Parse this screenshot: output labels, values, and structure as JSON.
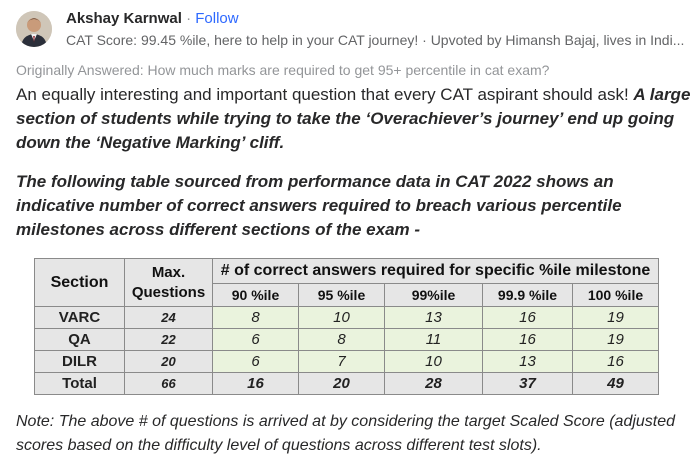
{
  "author": {
    "name": "Akshay Karnwal",
    "separator": "·",
    "follow_label": "Follow",
    "credential": "CAT Score: 99.45 %ile, here to help in your CAT journey! · Upvoted by Himansh Bajaj, lives in Indi..."
  },
  "originally_answered": "Originally Answered: How much marks are required to get 95+ percentile in cat exam?",
  "paragraph1": {
    "normal": "An equally interesting and important question that every CAT aspirant should ask! ",
    "emphasis": "A large section of students while trying to take the ‘Overachiever’s journey’ end up going down the ‘Negative Marking’ cliff."
  },
  "paragraph2": "The following table sourced from performance data in CAT 2022 shows an indicative number of correct answers required to breach various percentile milestones across different sections of the exam -",
  "table": {
    "section_header": "Section",
    "max_header_line1": "Max.",
    "max_header_line2": "Questions",
    "span_header": "# of correct answers required for specific %ile milestone",
    "milestones": [
      "90 %ile",
      "95 %ile",
      "99%ile",
      "99.9 %ile",
      "100 %ile"
    ],
    "rows": [
      {
        "section": "VARC",
        "max": "24",
        "values": [
          "8",
          "10",
          "13",
          "16",
          "19"
        ]
      },
      {
        "section": "QA",
        "max": "22",
        "values": [
          "6",
          "8",
          "11",
          "16",
          "19"
        ]
      },
      {
        "section": "DILR",
        "max": "20",
        "values": [
          "6",
          "7",
          "10",
          "13",
          "16"
        ]
      },
      {
        "section": "Total",
        "max": "66",
        "values": [
          "16",
          "20",
          "28",
          "37",
          "49"
        ]
      }
    ]
  },
  "note": "Note: The above # of questions is arrived at by considering the target Scaled Score (adjusted scores based on the difficulty level of questions across different test slots)."
}
